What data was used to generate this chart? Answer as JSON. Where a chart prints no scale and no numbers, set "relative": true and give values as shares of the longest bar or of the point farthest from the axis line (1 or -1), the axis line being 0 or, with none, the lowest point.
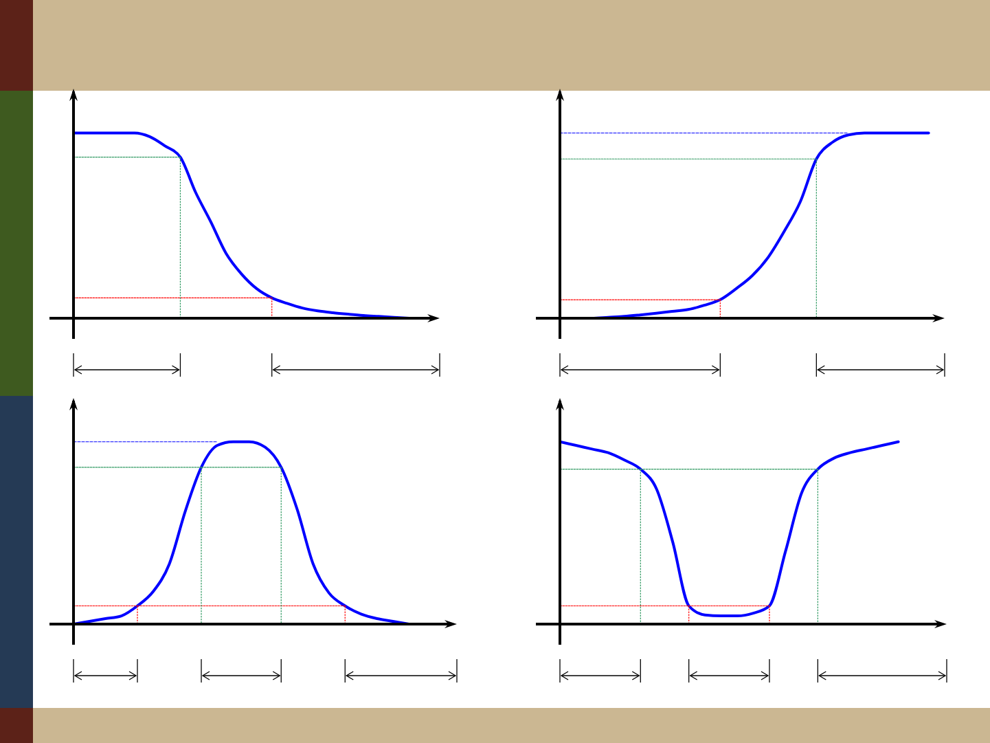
{
  "chart_data": [
    {
      "type": "line",
      "relative": true,
      "marker": "none",
      "categories": [
        null,
        null,
        null,
        null,
        null,
        null,
        null,
        null,
        null,
        null,
        null,
        null,
        null,
        null,
        null,
        null,
        null,
        null,
        null,
        null,
        null,
        null,
        null,
        null,
        null
      ],
      "series": [
        {
          "color": "#0000ff",
          "line_style": "solid",
          "values": [
            1,
            1,
            1,
            1,
            1,
            0.98,
            0.93,
            0.87,
            0.68,
            0.52,
            0.35,
            0.24,
            0.16,
            0.11,
            0.08,
            0.055,
            0.04,
            0.03,
            0.022,
            0.015,
            0.01,
            0.005,
            0,
            null,
            null
          ]
        },
        {
          "color": "#2e9960",
          "line_style": "dotted",
          "values": [
            0.87,
            0.87,
            0.87,
            0.87,
            0.87,
            0.87,
            0.87,
            0.87,
            null,
            null,
            null,
            null,
            null,
            null,
            null,
            null,
            null,
            null,
            null,
            null,
            null,
            null,
            null,
            null,
            null
          ]
        },
        {
          "color": "#ff0000",
          "line_style": "dotted",
          "values": [
            0.11,
            0.11,
            0.11,
            0.11,
            0.11,
            0.11,
            0.11,
            0.11,
            0.11,
            0.11,
            0.11,
            0.11,
            0.11,
            0.11,
            null,
            null,
            null,
            null,
            null,
            null,
            null,
            null,
            null,
            null,
            null
          ]
        }
      ]
    },
    {
      "type": "line",
      "relative": true,
      "marker": "none",
      "categories": [
        null,
        null,
        null,
        null,
        null,
        null,
        null,
        null,
        null,
        null,
        null,
        null,
        null,
        null,
        null,
        null,
        null,
        null,
        null,
        null,
        null,
        null,
        null,
        null,
        null
      ],
      "series": [
        {
          "color": "#0000ff",
          "line_style": "solid",
          "values": [
            0,
            0,
            0,
            0.005,
            0.01,
            0.018,
            0.027,
            0.037,
            0.047,
            0.07,
            0.1,
            0.16,
            0.23,
            0.33,
            0.47,
            0.63,
            0.86,
            0.95,
            0.99,
            1,
            1,
            1,
            1,
            1,
            null
          ]
        },
        {
          "color": "#0000ff",
          "line_style": "dashed",
          "values": [
            1,
            1,
            1,
            1,
            1,
            1,
            1,
            1,
            1,
            1,
            1,
            1,
            1,
            1,
            1,
            1,
            1,
            1,
            1,
            null,
            null,
            null,
            null,
            null,
            null
          ]
        },
        {
          "color": "#2e9960",
          "line_style": "dotted",
          "values": [
            0.86,
            0.86,
            0.86,
            0.86,
            0.86,
            0.86,
            0.86,
            0.86,
            0.86,
            0.86,
            0.86,
            0.86,
            0.86,
            0.86,
            0.86,
            0.86,
            0.86,
            null,
            null,
            null,
            null,
            null,
            null,
            null,
            null
          ]
        },
        {
          "color": "#ff0000",
          "line_style": "dotted",
          "values": [
            0.1,
            0.1,
            0.1,
            0.1,
            0.1,
            0.1,
            0.1,
            0.1,
            0.1,
            0.1,
            0.1,
            null,
            null,
            null,
            null,
            null,
            null,
            null,
            null,
            null,
            null,
            null,
            null,
            null,
            null
          ]
        }
      ]
    },
    {
      "type": "line",
      "relative": true,
      "marker": "none",
      "categories": [
        null,
        null,
        null,
        null,
        null,
        null,
        null,
        null,
        null,
        null,
        null,
        null,
        null,
        null,
        null,
        null,
        null,
        null,
        null,
        null,
        null,
        null,
        null,
        null,
        null
      ],
      "series": [
        {
          "color": "#0000ff",
          "line_style": "solid",
          "values": [
            0,
            0.015,
            0.03,
            0.045,
            0.1,
            0.18,
            0.33,
            0.62,
            0.86,
            0.98,
            1,
            1,
            0.97,
            0.86,
            0.63,
            0.33,
            0.17,
            0.1,
            0.055,
            0.03,
            0.015,
            0,
            null,
            null,
            null
          ]
        },
        {
          "color": "#0000ff",
          "line_style": "dashed",
          "values": [
            1,
            1,
            1,
            1,
            1,
            1,
            1,
            1,
            1,
            1,
            null,
            null,
            null,
            null,
            null,
            null,
            null,
            null,
            null,
            null,
            null,
            null,
            null,
            null,
            null
          ]
        },
        {
          "color": "#2e9960",
          "line_style": "dotted",
          "values": [
            0.86,
            0.86,
            0.86,
            0.86,
            0.86,
            0.86,
            0.86,
            0.86,
            0.86,
            null,
            null,
            null,
            null,
            null,
            null,
            null,
            null,
            null,
            null,
            null,
            null,
            null,
            null,
            null,
            null
          ]
        },
        {
          "color": "#2e9960",
          "line_style": "dotted",
          "values": [
            null,
            null,
            null,
            null,
            null,
            null,
            null,
            null,
            0.86,
            0.86,
            0.86,
            0.86,
            0.86,
            0.86,
            null,
            null,
            null,
            null,
            null,
            null,
            null,
            null,
            null,
            null,
            null
          ]
        },
        {
          "color": "#ff0000",
          "line_style": "dotted",
          "values": [
            0.1,
            0.1,
            0.1,
            0.1,
            0.1,
            null,
            null,
            null,
            null,
            null,
            null,
            null,
            null,
            null,
            null,
            null,
            null,
            null,
            null,
            null,
            null,
            null,
            null,
            null,
            null
          ]
        },
        {
          "color": "#ff0000",
          "line_style": "dotted",
          "values": [
            null,
            null,
            null,
            null,
            0.1,
            0.1,
            0.1,
            0.1,
            0.1,
            0.1,
            0.1,
            0.1,
            0.1,
            0.1,
            0.1,
            0.1,
            0.1,
            0.1,
            null,
            null,
            null,
            null,
            null,
            null,
            null
          ]
        }
      ]
    },
    {
      "type": "line",
      "relative": true,
      "marker": "none",
      "categories": [
        null,
        null,
        null,
        null,
        null,
        null,
        null,
        null,
        null,
        null,
        null,
        null,
        null,
        null,
        null,
        null,
        null,
        null,
        null,
        null,
        null,
        null,
        null,
        null,
        null
      ],
      "series": [
        {
          "color": "#0000ff",
          "line_style": "solid",
          "values": [
            1,
            0.98,
            0.96,
            0.94,
            0.9,
            0.85,
            0.74,
            0.45,
            0.1,
            0.05,
            0.045,
            0.045,
            0.06,
            0.1,
            0.4,
            0.72,
            0.85,
            0.91,
            0.94,
            0.96,
            0.98,
            1,
            null,
            null,
            null
          ]
        },
        {
          "color": "#2e9960",
          "line_style": "dotted",
          "values": [
            0.85,
            0.85,
            0.85,
            0.85,
            0.85,
            0.85,
            null,
            null,
            null,
            null,
            null,
            null,
            null,
            null,
            null,
            null,
            null,
            null,
            null,
            null,
            null,
            null,
            null,
            null,
            null
          ]
        },
        {
          "color": "#2e9960",
          "line_style": "dotted",
          "values": [
            null,
            null,
            null,
            null,
            null,
            0.85,
            0.85,
            0.85,
            0.85,
            0.85,
            0.85,
            0.85,
            0.85,
            0.85,
            0.85,
            0.85,
            0.85,
            null,
            null,
            null,
            null,
            null,
            null,
            null,
            null
          ]
        },
        {
          "color": "#ff0000",
          "line_style": "dotted",
          "values": [
            0.1,
            0.1,
            0.1,
            0.1,
            0.1,
            0.1,
            0.1,
            0.1,
            0.1,
            null,
            null,
            null,
            null,
            null,
            null,
            null,
            null,
            null,
            null,
            null,
            null,
            null,
            null,
            null,
            null
          ]
        },
        {
          "color": "#ff0000",
          "line_style": "dotted",
          "values": [
            null,
            null,
            null,
            null,
            null,
            null,
            null,
            null,
            0.1,
            0.1,
            0.1,
            0.1,
            0.1,
            0.1,
            null,
            null,
            null,
            null,
            null,
            null,
            null,
            null,
            null,
            null,
            null
          ]
        }
      ]
    }
  ]
}
